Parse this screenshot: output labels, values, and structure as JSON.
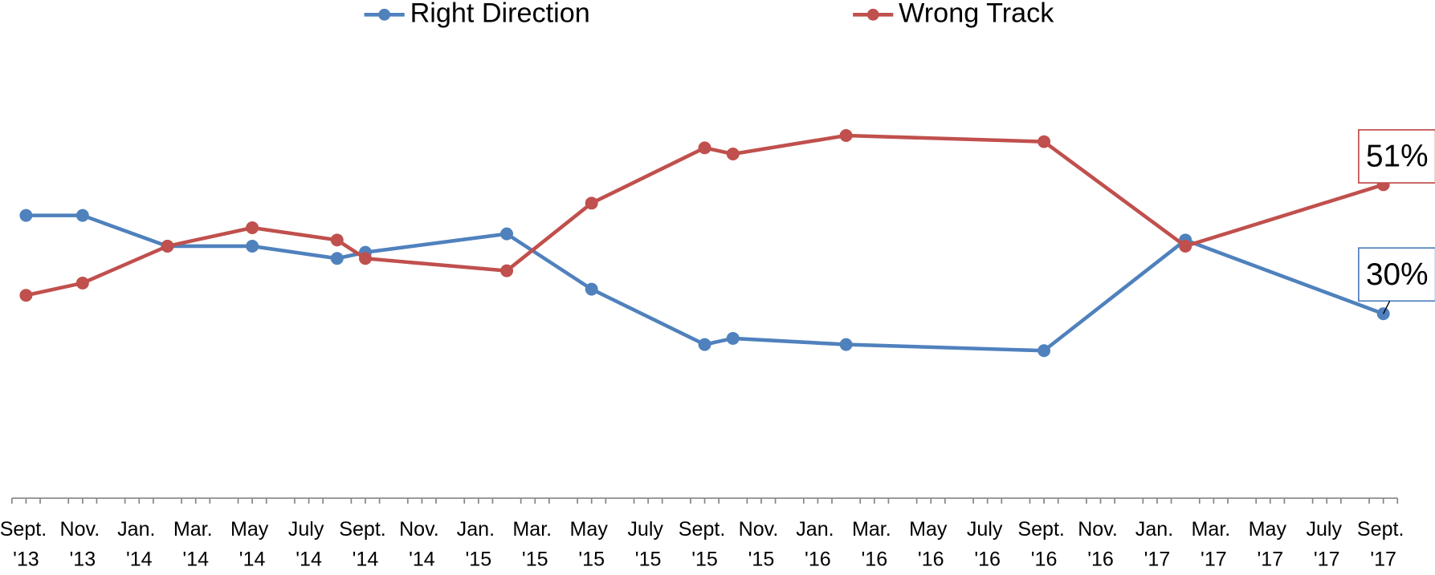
{
  "chart_data": {
    "type": "line",
    "x": [
      "2013-09",
      "2013-11",
      "2014-02",
      "2014-05",
      "2014-08",
      "2014-09",
      "2015-02",
      "2015-05",
      "2015-09",
      "2015-10",
      "2016-02",
      "2016-09",
      "2017-02",
      "2017-09"
    ],
    "series": [
      {
        "name": "Right Direction",
        "color": "#4f81bd",
        "values": [
          46,
          46,
          41,
          41,
          39,
          40,
          43,
          34,
          25,
          26,
          25,
          24,
          42,
          30
        ],
        "value_labels": [
          null,
          null,
          null,
          null,
          null,
          null,
          null,
          null,
          null,
          null,
          null,
          null,
          null,
          "30%"
        ]
      },
      {
        "name": "Wrong Track",
        "color": "#c0504d",
        "values": [
          33,
          35,
          41,
          44,
          42,
          39,
          37,
          48,
          57,
          56,
          59,
          58,
          41,
          51
        ],
        "value_labels": [
          null,
          null,
          null,
          null,
          null,
          null,
          null,
          null,
          null,
          null,
          null,
          null,
          null,
          "51%"
        ]
      }
    ],
    "xlim": [
      "2013-09",
      "2017-09"
    ],
    "xticks": [
      {
        "value": "2013-09",
        "label": "Sept. '13"
      },
      {
        "value": "2013-11",
        "label": "Nov. '13"
      },
      {
        "value": "2014-01",
        "label": "Jan. '14"
      },
      {
        "value": "2014-03",
        "label": "Mar. '14"
      },
      {
        "value": "2014-05",
        "label": "May '14"
      },
      {
        "value": "2014-07",
        "label": "July '14"
      },
      {
        "value": "2014-09",
        "label": "Sept. '14"
      },
      {
        "value": "2014-11",
        "label": "Nov. '14"
      },
      {
        "value": "2015-01",
        "label": "Jan. '15"
      },
      {
        "value": "2015-03",
        "label": "Mar. '15"
      },
      {
        "value": "2015-05",
        "label": "May '15"
      },
      {
        "value": "2015-07",
        "label": "July '15"
      },
      {
        "value": "2015-09",
        "label": "Sept. '15"
      },
      {
        "value": "2015-11",
        "label": "Nov. '15"
      },
      {
        "value": "2016-01",
        "label": "Jan. '16"
      },
      {
        "value": "2016-03",
        "label": "Mar. '16"
      },
      {
        "value": "2016-05",
        "label": "May '16"
      },
      {
        "value": "2016-07",
        "label": "July '16"
      },
      {
        "value": "2016-09",
        "label": "Sept. '16"
      },
      {
        "value": "2016-11",
        "label": "Nov. '16"
      },
      {
        "value": "2017-01",
        "label": "Jan. '17"
      },
      {
        "value": "2017-03",
        "label": "Mar. '17"
      },
      {
        "value": "2017-05",
        "label": "May '17"
      },
      {
        "value": "2017-07",
        "label": "July '17"
      },
      {
        "value": "2017-09",
        "label": "Sept. '17"
      }
    ],
    "ylim": [
      0,
      80
    ],
    "legend": "top"
  }
}
